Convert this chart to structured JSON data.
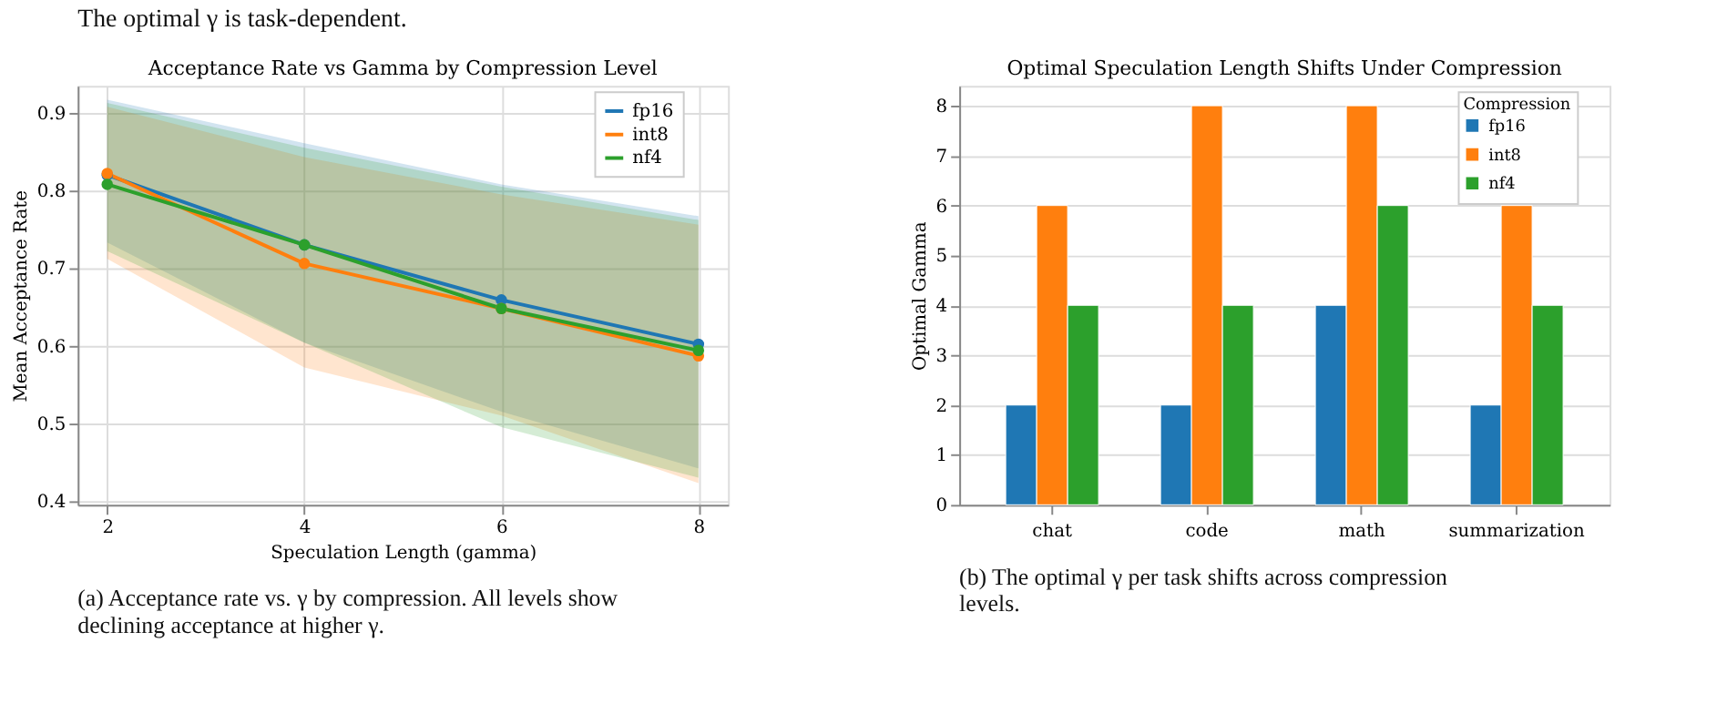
{
  "chart_data": [
    {
      "type": "line",
      "title": "Acceptance Rate vs Gamma by Compression Level",
      "xlabel": "Speculation Length (gamma)",
      "ylabel": "Mean Acceptance Rate",
      "x": [
        2,
        4,
        6,
        8
      ],
      "xlim": [
        1.7,
        8.3
      ],
      "xticks": [
        2,
        4,
        6,
        8
      ],
      "ylim": [
        0.395,
        0.935
      ],
      "yticks": [
        0.4,
        0.5,
        0.6,
        0.7,
        0.8,
        0.9
      ],
      "grid": true,
      "legend": "top right",
      "marker": "circle",
      "line_style": "solid",
      "series": [
        {
          "name": "fp16",
          "color": "#1f77b4",
          "values": [
            0.82,
            0.73,
            0.659,
            0.602
          ],
          "lower": [
            0.733,
            0.604,
            0.515,
            0.442
          ],
          "upper": [
            0.917,
            0.861,
            0.808,
            0.767
          ]
        },
        {
          "name": "int8",
          "color": "#ff7f0e",
          "values": [
            0.822,
            0.706,
            0.648,
            0.587
          ],
          "lower": [
            0.712,
            0.572,
            0.51,
            0.423
          ],
          "upper": [
            0.908,
            0.843,
            0.795,
            0.756
          ]
        },
        {
          "name": "nf4",
          "color": "#2ca02c",
          "values": [
            0.808,
            0.73,
            0.648,
            0.594
          ],
          "lower": [
            0.722,
            0.604,
            0.495,
            0.43
          ],
          "upper": [
            0.913,
            0.855,
            0.805,
            0.762
          ]
        }
      ],
      "annotations": [
        "The optimal γ is task-dependent.",
        "(a) Acceptance rate vs. γ by compression. All levels show declining acceptance at higher γ."
      ]
    },
    {
      "type": "bar",
      "title": "Optimal Speculation Length Shifts Under Compression",
      "ylabel": "Optimal Gamma",
      "legend_title": "Compression",
      "categories": [
        "chat",
        "code",
        "math",
        "summarization"
      ],
      "ylim": [
        0,
        8.4
      ],
      "yticks": [
        0,
        1,
        2,
        3,
        4,
        5,
        6,
        7,
        8
      ],
      "grid": "y",
      "legend": "top right",
      "series": [
        {
          "name": "fp16",
          "color": "#1f77b4",
          "values": [
            2,
            2,
            4,
            2
          ]
        },
        {
          "name": "int8",
          "color": "#ff7f0e",
          "values": [
            6,
            8,
            8,
            6
          ]
        },
        {
          "name": "nf4",
          "color": "#2ca02c",
          "values": [
            4,
            4,
            6,
            4
          ]
        }
      ],
      "annotations": [
        "(b) The optimal γ per task shifts across compression levels."
      ]
    }
  ]
}
